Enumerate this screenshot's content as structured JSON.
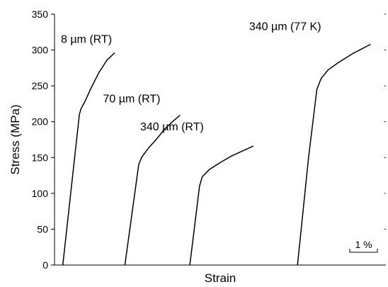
{
  "chart_data": {
    "type": "line",
    "title": "",
    "xlabel": "Strain",
    "ylabel": "Stress (MPa)",
    "ylim": [
      0,
      350
    ],
    "yticks": [
      0,
      50,
      100,
      150,
      200,
      250,
      300,
      350
    ],
    "x_unit": "strain %",
    "grid": false,
    "legend": "none",
    "scale_bar": {
      "label": "1 %",
      "length": 1
    },
    "series": [
      {
        "name": "8 µm (RT)",
        "points": [
          [
            0.0,
            0
          ],
          [
            0.6,
            210
          ],
          [
            0.66,
            218
          ],
          [
            0.8,
            228
          ],
          [
            1.0,
            245
          ],
          [
            1.3,
            268
          ],
          [
            1.6,
            286
          ],
          [
            1.88,
            296
          ]
        ]
      },
      {
        "name": "70 µm (RT)",
        "points": [
          [
            2.25,
            0
          ],
          [
            2.75,
            140
          ],
          [
            2.85,
            150
          ],
          [
            3.1,
            163
          ],
          [
            3.4,
            176
          ],
          [
            3.7,
            190
          ],
          [
            4.0,
            201
          ],
          [
            4.25,
            209
          ]
        ]
      },
      {
        "name": "340 µm (RT)",
        "points": [
          [
            4.6,
            0
          ],
          [
            4.95,
            110
          ],
          [
            5.05,
            123
          ],
          [
            5.3,
            133
          ],
          [
            5.7,
            143
          ],
          [
            6.1,
            152
          ],
          [
            6.5,
            159
          ],
          [
            6.9,
            166
          ]
        ]
      },
      {
        "name": "340 µm (77 K)",
        "points": [
          [
            8.5,
            0
          ],
          [
            8.9,
            150
          ],
          [
            9.2,
            245
          ],
          [
            9.35,
            260
          ],
          [
            9.6,
            272
          ],
          [
            10.0,
            283
          ],
          [
            10.5,
            295
          ],
          [
            10.9,
            303
          ],
          [
            11.15,
            308
          ]
        ]
      }
    ]
  }
}
